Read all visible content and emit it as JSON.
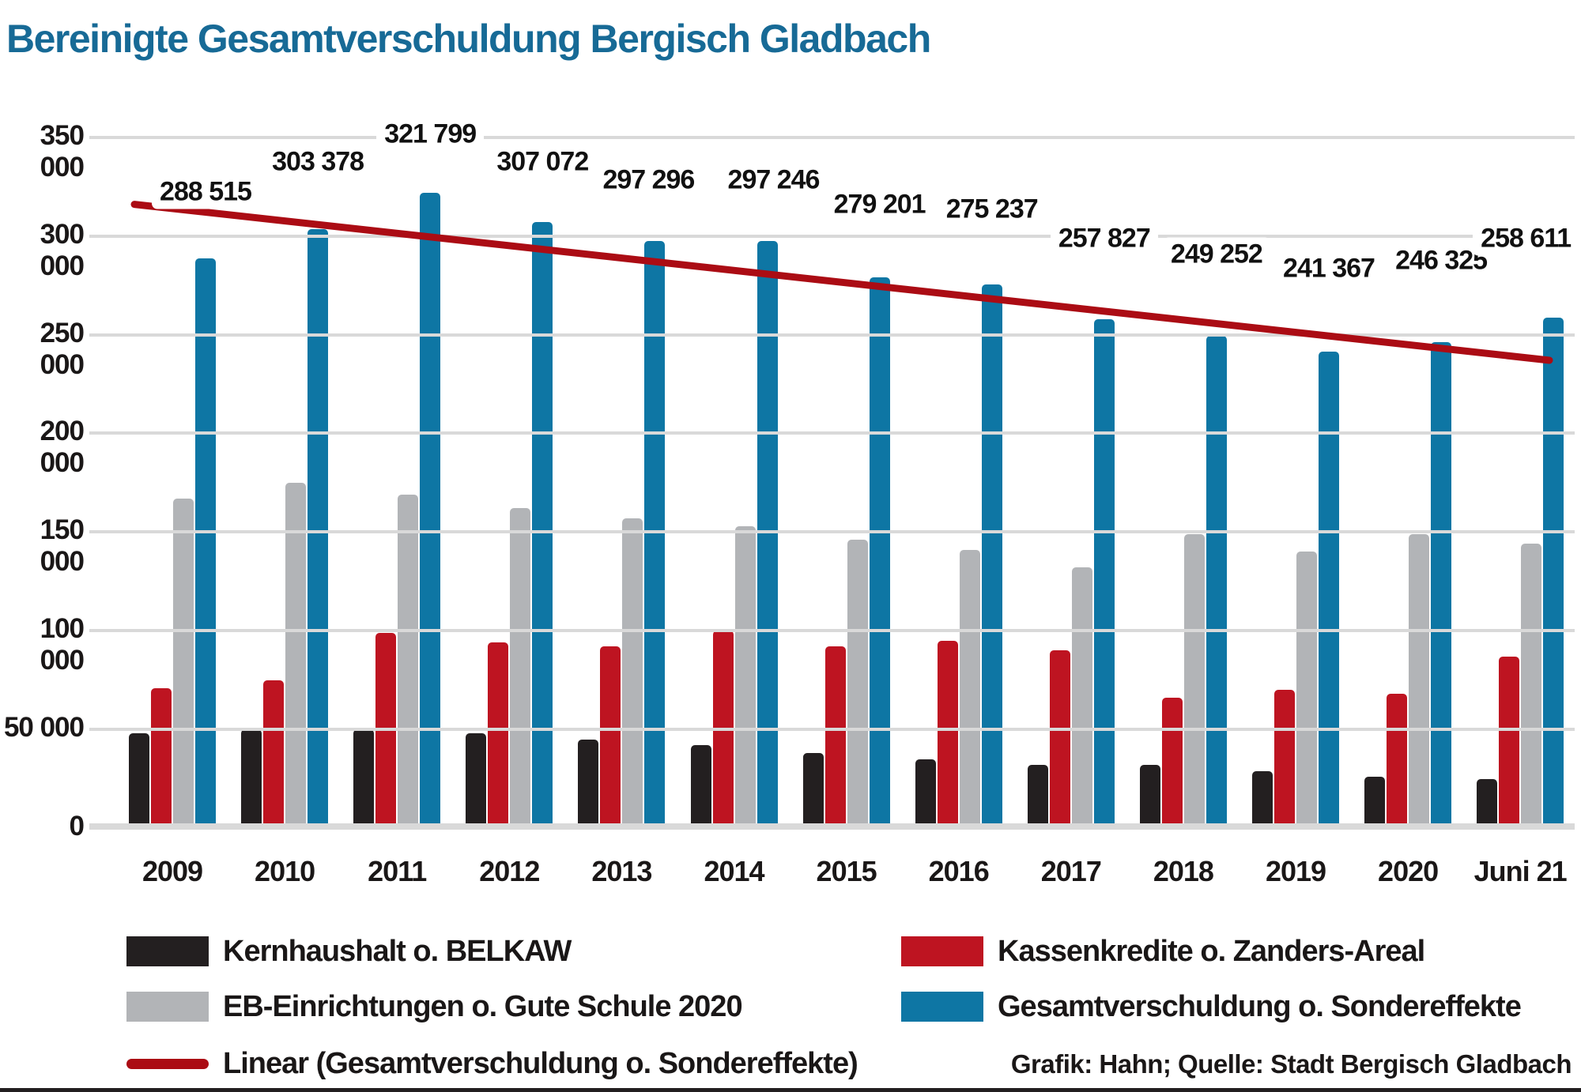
{
  "title": "Bereinigte Gesamtverschuldung Bergisch Gladbach",
  "source": "Grafik: Hahn; Quelle: Stadt Bergisch Gladbach",
  "colors": {
    "bar_black": "#231f20",
    "bar_red": "#be1421",
    "bar_gray": "#b2b4b7",
    "bar_blue": "#0e76a4",
    "trend_red": "#ab0c14",
    "title_blue": "#176a96",
    "grid": "#d9d9d9",
    "text": "#1a1717",
    "rule": "#231f20",
    "label_bg": "#ffffff"
  },
  "chart_data": {
    "type": "bar",
    "title": "Bereinigte Gesamtverschuldung Bergisch Gladbach",
    "categories": [
      "2009",
      "2010",
      "2011",
      "2012",
      "2013",
      "2014",
      "2015",
      "2016",
      "2017",
      "2018",
      "2019",
      "2020",
      "Juni 21"
    ],
    "series": [
      {
        "name": "Kernhaushalt o. BELKAW",
        "color_key": "bar_black",
        "values": [
          48000,
          50000,
          50000,
          48000,
          45000,
          42000,
          38000,
          35000,
          32000,
          32000,
          29000,
          26000,
          25000
        ]
      },
      {
        "name": "Kassenkredite o. Zanders-Areal",
        "color_key": "bar_red",
        "values": [
          71000,
          75000,
          99000,
          94000,
          92000,
          100000,
          92000,
          95000,
          90000,
          66000,
          70000,
          68000,
          87000
        ]
      },
      {
        "name": "EB-Einrichtungen o. Gute Schule 2020",
        "color_key": "bar_gray",
        "values": [
          167000,
          175000,
          169000,
          162000,
          157000,
          153000,
          146000,
          141000,
          132000,
          149000,
          140000,
          149000,
          144000
        ]
      },
      {
        "name": "Gesamtverschuldung o. Sondereffekte",
        "color_key": "bar_blue",
        "values": [
          288515,
          303378,
          321799,
          307072,
          297296,
          297246,
          279201,
          275237,
          257827,
          249252,
          241367,
          246325,
          258611
        ],
        "data_labels": [
          "288 515",
          "303 378",
          "321 799",
          "307 072",
          "297 296",
          "297 246",
          "279 201",
          "275 237",
          "257 827",
          "249 252",
          "241 367",
          "246 325",
          "258 611"
        ]
      }
    ],
    "trend": {
      "name": "Linear (Gesamtverschuldung o. Sondereffekte)",
      "start_value": 316000,
      "end_value": 237000
    },
    "y_ticks": [
      "350 000",
      "300 000",
      "250 000",
      "200 000",
      "150 000",
      "100 000",
      "50 000",
      "0"
    ],
    "y_tick_values": [
      350000,
      300000,
      250000,
      200000,
      150000,
      100000,
      50000,
      0
    ],
    "ylim": [
      0,
      350000
    ],
    "grid": "horizontal",
    "legend_position": "bottom-two-columns"
  }
}
